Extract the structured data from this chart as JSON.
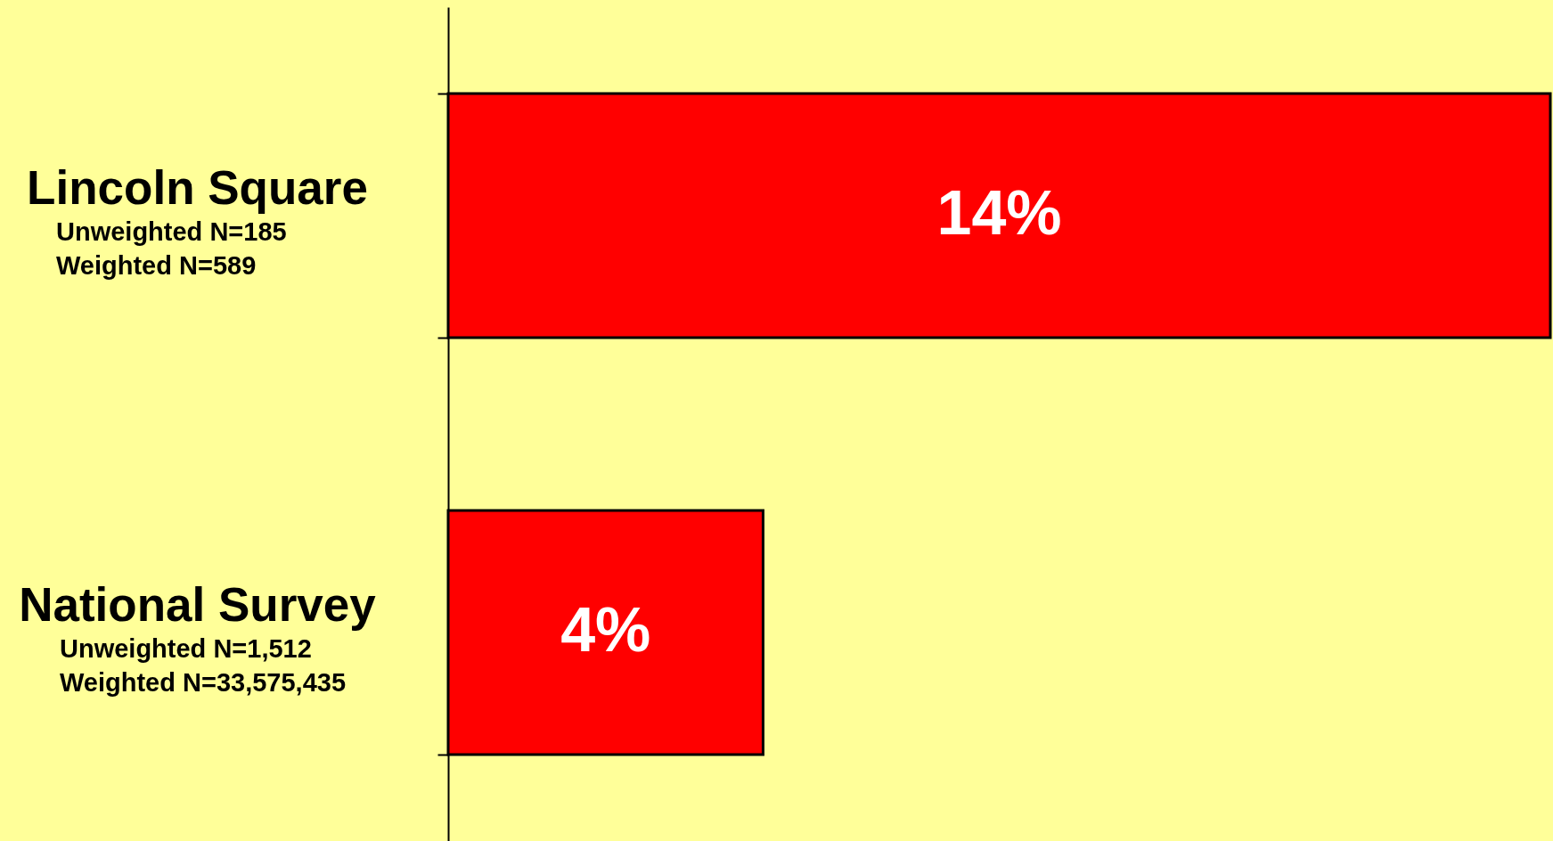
{
  "chart_data": {
    "type": "bar",
    "orientation": "horizontal",
    "categories": [
      "Lincoln Square",
      "National Survey"
    ],
    "values": [
      14,
      4
    ],
    "value_labels": [
      "14%",
      "4%"
    ],
    "color": "#ff0000",
    "annotations": [
      "Unweighted N=185",
      "Weighted N=589",
      "Unweighted N=1,512",
      "Weighted N=33,575,435"
    ],
    "grid": false
  }
}
